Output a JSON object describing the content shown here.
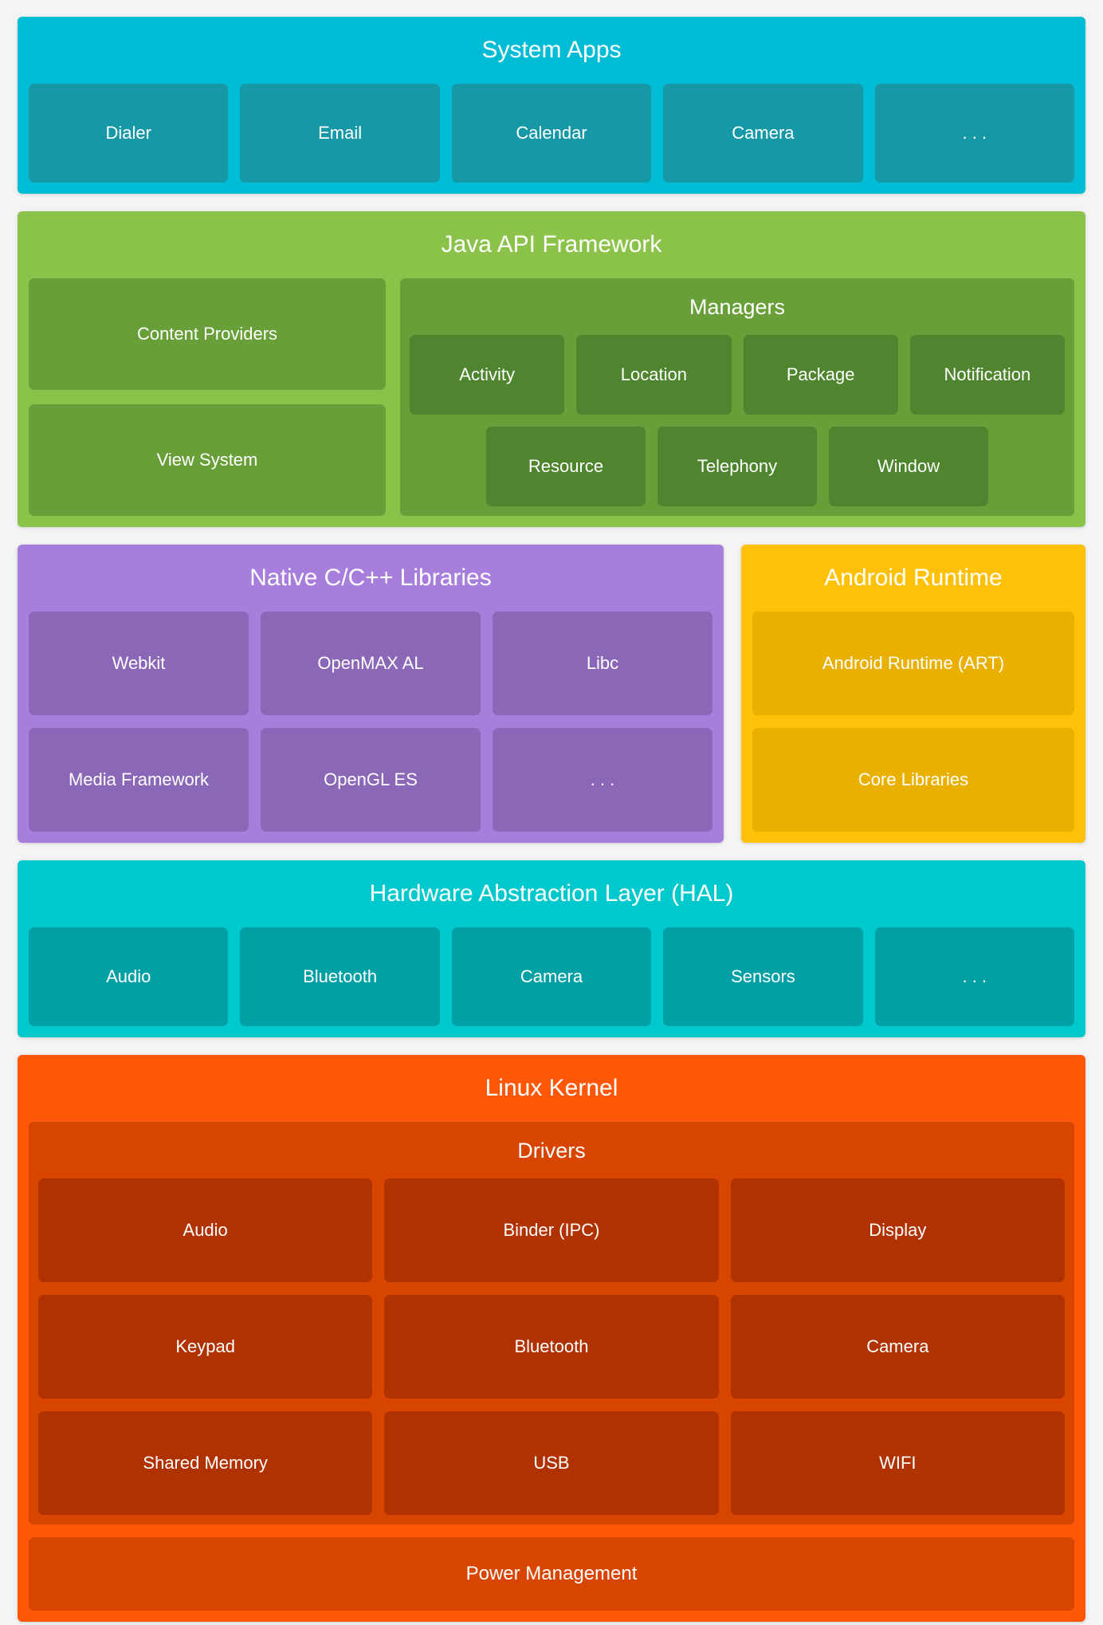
{
  "background_color": "#F4F4F4",
  "text_color": "#FFFFFF",
  "layers": {
    "system_apps": {
      "title": "System Apps",
      "colors": {
        "bg": "#00BCD4",
        "box": "#1798A6"
      },
      "boxes": [
        "Dialer",
        "Email",
        "Calendar",
        "Camera",
        ". . ."
      ]
    },
    "java_api_framework": {
      "title": "Java API Framework",
      "colors": {
        "bg": "#8BC34A",
        "box": "#689F38",
        "inner_box": "#4E852E"
      },
      "left_boxes": [
        "Content Providers",
        "View System"
      ],
      "managers": {
        "title": "Managers",
        "row1": [
          "Activity",
          "Location",
          "Package",
          "Notification"
        ],
        "row2": [
          "Resource",
          "Telephony",
          "Window"
        ]
      }
    },
    "native_libraries": {
      "title": "Native C/C++ Libraries",
      "colors": {
        "bg": "#A77EDB",
        "box": "#8A67B7"
      },
      "row1": [
        "Webkit",
        "OpenMAX AL",
        "Libc"
      ],
      "row2": [
        "Media Framework",
        "OpenGL ES",
        ". . ."
      ]
    },
    "android_runtime": {
      "title": "Android Runtime",
      "colors": {
        "bg": "#FFC107",
        "box": "#E9B000"
      },
      "boxes": [
        "Android Runtime (ART)",
        "Core Libraries"
      ]
    },
    "hal": {
      "title": "Hardware Abstraction Layer (HAL)",
      "colors": {
        "bg": "#00C9CD",
        "box": "#00A0A4"
      },
      "boxes": [
        "Audio",
        "Bluetooth",
        "Camera",
        "Sensors",
        ". . ."
      ]
    },
    "linux_kernel": {
      "title": "Linux Kernel",
      "colors": {
        "bg": "#FF5708",
        "box": "#D84500",
        "inner_box": "#B03200"
      },
      "drivers": {
        "title": "Drivers",
        "row1": [
          "Audio",
          "Binder (IPC)",
          "Display"
        ],
        "row2": [
          "Keypad",
          "Bluetooth",
          "Camera"
        ],
        "row3": [
          "Shared Memory",
          "USB",
          "WIFI"
        ]
      },
      "power_management": "Power Management"
    }
  }
}
